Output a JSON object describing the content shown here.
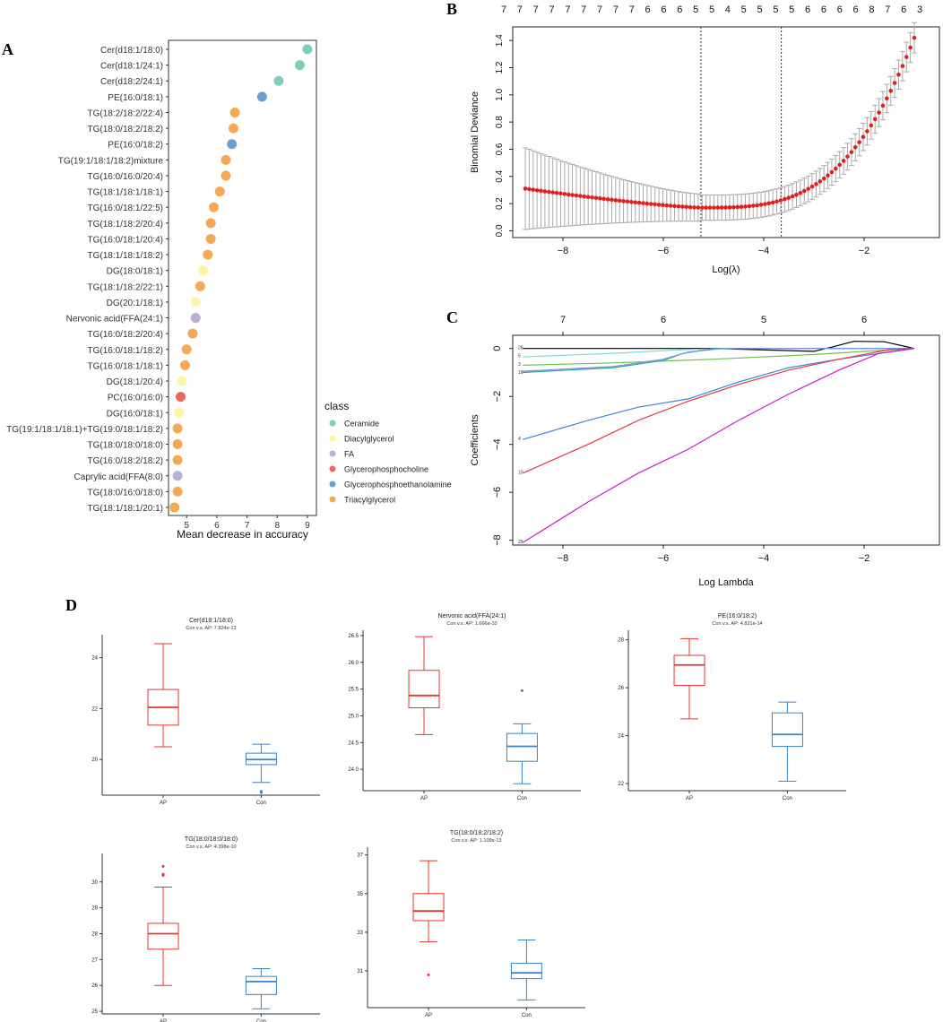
{
  "figure": {
    "panel_labels": [
      "A",
      "B",
      "C",
      "D"
    ]
  },
  "chart_data": [
    {
      "panel": "A",
      "type": "scatter",
      "title": "",
      "xlabel": "Mean decrease in accuracy",
      "ylabel": "",
      "xlim": [
        4.4,
        9.3
      ],
      "xticks": [
        5,
        6,
        7,
        8,
        9
      ],
      "legend_title": "class",
      "legend": [
        {
          "name": "Ceramide",
          "color": "#7fcdbb"
        },
        {
          "name": "Diacylglycerol",
          "color": "#fdf5a6"
        },
        {
          "name": "FA",
          "color": "#bcaed6"
        },
        {
          "name": "Glycerophosphocholine",
          "color": "#e8685a"
        },
        {
          "name": "Glycerophosphoethanolamine",
          "color": "#6a9fd0"
        },
        {
          "name": "Triacylglycerol",
          "color": "#f3a85a"
        }
      ],
      "points": [
        {
          "label": "Cer(d18:1/18:0)",
          "value": 9.0,
          "class": "Ceramide"
        },
        {
          "label": "Cer(d18:1/24:1)",
          "value": 8.75,
          "class": "Ceramide"
        },
        {
          "label": "Cer(d18:2/24:1)",
          "value": 8.05,
          "class": "Ceramide"
        },
        {
          "label": "PE(16:0/18:1)",
          "value": 7.5,
          "class": "Glycerophosphoethanolamine"
        },
        {
          "label": "TG(18:2/18:2/22:4)",
          "value": 6.6,
          "class": "Triacylglycerol"
        },
        {
          "label": "TG(18:0/18:2/18:2)",
          "value": 6.55,
          "class": "Triacylglycerol"
        },
        {
          "label": "PE(16:0/18:2)",
          "value": 6.5,
          "class": "Glycerophosphoethanolamine"
        },
        {
          "label": "TG(19:1/18:1/18:2)mixture",
          "value": 6.3,
          "class": "Triacylglycerol"
        },
        {
          "label": "TG(16:0/16:0/20:4)",
          "value": 6.3,
          "class": "Triacylglycerol"
        },
        {
          "label": "TG(18:1/18:1/18:1)",
          "value": 6.1,
          "class": "Triacylglycerol"
        },
        {
          "label": "TG(16:0/18:1/22:5)",
          "value": 5.9,
          "class": "Triacylglycerol"
        },
        {
          "label": "TG(18:1/18:2/20:4)",
          "value": 5.8,
          "class": "Triacylglycerol"
        },
        {
          "label": "TG(16:0/18:1/20:4)",
          "value": 5.8,
          "class": "Triacylglycerol"
        },
        {
          "label": "TG(18:1/18:1/18:2)",
          "value": 5.7,
          "class": "Triacylglycerol"
        },
        {
          "label": "DG(18:0/18:1)",
          "value": 5.55,
          "class": "Diacylglycerol"
        },
        {
          "label": "TG(18:1/18:2/22:1)",
          "value": 5.45,
          "class": "Triacylglycerol"
        },
        {
          "label": "DG(20:1/18:1)",
          "value": 5.3,
          "class": "Diacylglycerol"
        },
        {
          "label": "Nervonic acid(FFA(24:1)",
          "value": 5.3,
          "class": "FA"
        },
        {
          "label": "TG(16:0/18:2/20:4)",
          "value": 5.2,
          "class": "Triacylglycerol"
        },
        {
          "label": "TG(16:0/18:1/18:2)",
          "value": 5.0,
          "class": "Triacylglycerol"
        },
        {
          "label": "TG(16:0/18:1/18:1)",
          "value": 4.95,
          "class": "Triacylglycerol"
        },
        {
          "label": "DG(18:1/20:4)",
          "value": 4.85,
          "class": "Diacylglycerol"
        },
        {
          "label": "PC(16:0/16:0)",
          "value": 4.8,
          "class": "Glycerophosphocholine"
        },
        {
          "label": "DG(16:0/18:1)",
          "value": 4.75,
          "class": "Diacylglycerol"
        },
        {
          "label": "TG(19:1/18:1/18:1)+TG(19:0/18:1/18:2)",
          "value": 4.7,
          "class": "Triacylglycerol"
        },
        {
          "label": "TG(18:0/18:0/18:0)",
          "value": 4.7,
          "class": "Triacylglycerol"
        },
        {
          "label": "TG(16:0/18:2/18:2)",
          "value": 4.7,
          "class": "Triacylglycerol"
        },
        {
          "label": "Caprylic acid(FFA(8:0)",
          "value": 4.7,
          "class": "FA"
        },
        {
          "label": "TG(18:0/16:0/18:0)",
          "value": 4.7,
          "class": "Triacylglycerol"
        },
        {
          "label": "TG(18:1/18:1/20:1)",
          "value": 4.6,
          "class": "Triacylglycerol"
        }
      ]
    },
    {
      "panel": "B",
      "type": "line",
      "title": "",
      "xlabel": "Log(λ)",
      "ylabel": "Binomial Deviance",
      "xlim": [
        -9.0,
        -0.5
      ],
      "ylim": [
        -0.05,
        1.5
      ],
      "xticks": [
        -8,
        -6,
        -4,
        -2
      ],
      "yticks": [
        0.0,
        0.2,
        0.4,
        0.6,
        0.8,
        1.0,
        1.2,
        1.4
      ],
      "top_labels": [
        "7",
        "7",
        "7",
        "7",
        "7",
        "7",
        "7",
        "7",
        "7",
        "6",
        "6",
        "6",
        "5",
        "5",
        "4",
        "5",
        "5",
        "5",
        "5",
        "6",
        "6",
        "6",
        "6",
        "8",
        "7",
        "6",
        "3"
      ],
      "vlines": [
        -5.25,
        -3.65
      ],
      "series": [
        {
          "name": "cv deviance",
          "x_start": -8.75,
          "x_end": -1.0,
          "n_points": 100
        }
      ]
    },
    {
      "panel": "C",
      "type": "line",
      "title": "",
      "xlabel": "Log Lambda",
      "ylabel": "Coefficients",
      "xlim": [
        -9.0,
        -0.5
      ],
      "ylim": [
        -8.2,
        0.55
      ],
      "xticks": [
        -8,
        -6,
        -4,
        -2
      ],
      "yticks": [
        0,
        -2,
        -4,
        -6,
        -8
      ],
      "top_axis": {
        "labels": [
          "7",
          "6",
          "5",
          "6"
        ],
        "positions": [
          -8.0,
          -6.0,
          -4.0,
          -2.0
        ]
      },
      "series": [
        {
          "id": "28",
          "color": "#000000",
          "x": [
            -8.8,
            -5.0,
            -3.0,
            -2.6,
            -2.2,
            -1.6,
            -1.0
          ],
          "y": [
            0.0,
            0.0,
            -0.12,
            0.08,
            0.3,
            0.28,
            0.0
          ]
        },
        {
          "id": "5",
          "color": "#7fdbe6",
          "x": [
            -8.8,
            -7.0,
            -5.6,
            -4.5,
            -1.0
          ],
          "y": [
            -0.35,
            -0.2,
            -0.05,
            0.0,
            0.0
          ]
        },
        {
          "id": "3",
          "color": "#6cc24a",
          "x": [
            -8.8,
            -7.0,
            -5.0,
            -3.0,
            -1.0
          ],
          "y": [
            -0.7,
            -0.6,
            -0.45,
            -0.25,
            0.0
          ]
        },
        {
          "id": "18",
          "color": "#2aa198",
          "x": [
            -8.8,
            -7.0,
            -6.0,
            -5.6,
            -5.0,
            -1.0
          ],
          "y": [
            -1.0,
            -0.8,
            -0.5,
            -0.2,
            0.0,
            0.0
          ]
        },
        {
          "id": "18b",
          "color": "#7b8fe8",
          "x": [
            -8.8,
            -7.0,
            -6.0,
            -5.5,
            -4.8,
            -1.0
          ],
          "y": [
            -0.95,
            -0.75,
            -0.45,
            -0.15,
            0.0,
            0.0
          ]
        },
        {
          "id": "4",
          "color": "#3a86d6",
          "x": [
            -8.8,
            -7.5,
            -6.5,
            -5.5,
            -4.5,
            -3.5,
            -2.5,
            -1.0
          ],
          "y": [
            -3.8,
            -3.0,
            -2.45,
            -2.1,
            -1.4,
            -0.8,
            -0.45,
            0.0
          ]
        },
        {
          "id": "10",
          "color": "#e23b4a",
          "x": [
            -8.8,
            -7.5,
            -6.5,
            -5.5,
            -4.5,
            -3.5,
            -2.5,
            -1.5,
            -1.0
          ],
          "y": [
            -5.2,
            -4.0,
            -3.0,
            -2.2,
            -1.5,
            -0.9,
            -0.45,
            -0.05,
            0.0
          ]
        },
        {
          "id": "29",
          "color": "#d01ad0",
          "x": [
            -8.8,
            -7.5,
            -6.5,
            -5.5,
            -4.5,
            -3.5,
            -2.5,
            -1.7,
            -1.0
          ],
          "y": [
            -8.1,
            -6.4,
            -5.2,
            -4.2,
            -3.0,
            -1.9,
            -0.9,
            -0.2,
            0.0
          ]
        }
      ]
    },
    {
      "panel": "D",
      "type": "box",
      "groups": [
        "AP",
        "Con"
      ],
      "colors": {
        "AP": "#e8342e",
        "Con": "#3b82c4"
      },
      "plots": [
        {
          "title": "Cer(d18:1/18:0)",
          "subtitle": "Con v.s. AP: 7.824e-13",
          "ylim": [
            18.6,
            24.9
          ],
          "yticks": [
            20,
            22,
            24
          ],
          "boxes": [
            {
              "group": "AP",
              "whisker_low": 20.5,
              "q1": 21.35,
              "median": 22.05,
              "q3": 22.75,
              "whisker_high": 24.55,
              "outliers": []
            },
            {
              "group": "Con",
              "whisker_low": 19.1,
              "q1": 19.8,
              "median": 20.0,
              "q3": 20.25,
              "whisker_high": 20.6,
              "outliers": [
                18.7,
                18.75
              ]
            }
          ]
        },
        {
          "title": "Nervonic acid(FFA(24:1)",
          "subtitle": "Con v.s. AP: 1.666e-10",
          "ylim": [
            23.6,
            26.6
          ],
          "yticks": [
            24.0,
            24.5,
            25.0,
            25.5,
            26.0,
            26.5
          ],
          "boxes": [
            {
              "group": "AP",
              "whisker_low": 24.65,
              "q1": 25.15,
              "median": 25.38,
              "q3": 25.85,
              "whisker_high": 26.48,
              "outliers": []
            },
            {
              "group": "Con",
              "whisker_low": 23.73,
              "q1": 24.15,
              "median": 24.43,
              "q3": 24.67,
              "whisker_high": 24.85,
              "outliers": [
                25.47
              ]
            }
          ]
        },
        {
          "title": "PE(16:0/18:2)",
          "subtitle": "Con v.s. AP: 4.821e-14",
          "ylim": [
            21.7,
            28.4
          ],
          "yticks": [
            22,
            24,
            26,
            28
          ],
          "boxes": [
            {
              "group": "AP",
              "whisker_low": 24.7,
              "q1": 26.1,
              "median": 26.95,
              "q3": 27.35,
              "whisker_high": 28.05,
              "outliers": []
            },
            {
              "group": "Con",
              "whisker_low": 22.1,
              "q1": 23.55,
              "median": 24.05,
              "q3": 24.95,
              "whisker_high": 25.4,
              "outliers": []
            }
          ]
        },
        {
          "title": "TG(18:0/18:0/18:0)",
          "subtitle": "Con v.s. AP: 4.398e-10",
          "ylim": [
            24.9,
            31.1
          ],
          "yticks": [
            25,
            26,
            27,
            28,
            29,
            30
          ],
          "boxes": [
            {
              "group": "AP",
              "whisker_low": 26.0,
              "q1": 27.4,
              "median": 28.0,
              "q3": 28.4,
              "whisker_high": 29.8,
              "outliers": [
                30.6,
                30.3,
                30.25
              ]
            },
            {
              "group": "Con",
              "whisker_low": 25.1,
              "q1": 25.65,
              "median": 26.15,
              "q3": 26.35,
              "whisker_high": 26.65,
              "outliers": []
            }
          ]
        },
        {
          "title": "TG(18:0/18:2/18:2)",
          "subtitle": "Con v.s. AP: 1.109e-13",
          "ylim": [
            29.1,
            37.4
          ],
          "yticks": [
            31,
            33,
            35,
            37
          ],
          "boxes": [
            {
              "group": "AP",
              "whisker_low": 32.5,
              "q1": 33.6,
              "median": 34.1,
              "q3": 35.0,
              "whisker_high": 36.7,
              "outliers": [
                30.8
              ]
            },
            {
              "group": "Con",
              "whisker_low": 29.5,
              "q1": 30.6,
              "median": 30.9,
              "q3": 31.4,
              "whisker_high": 32.6,
              "outliers": []
            }
          ]
        }
      ]
    }
  ]
}
